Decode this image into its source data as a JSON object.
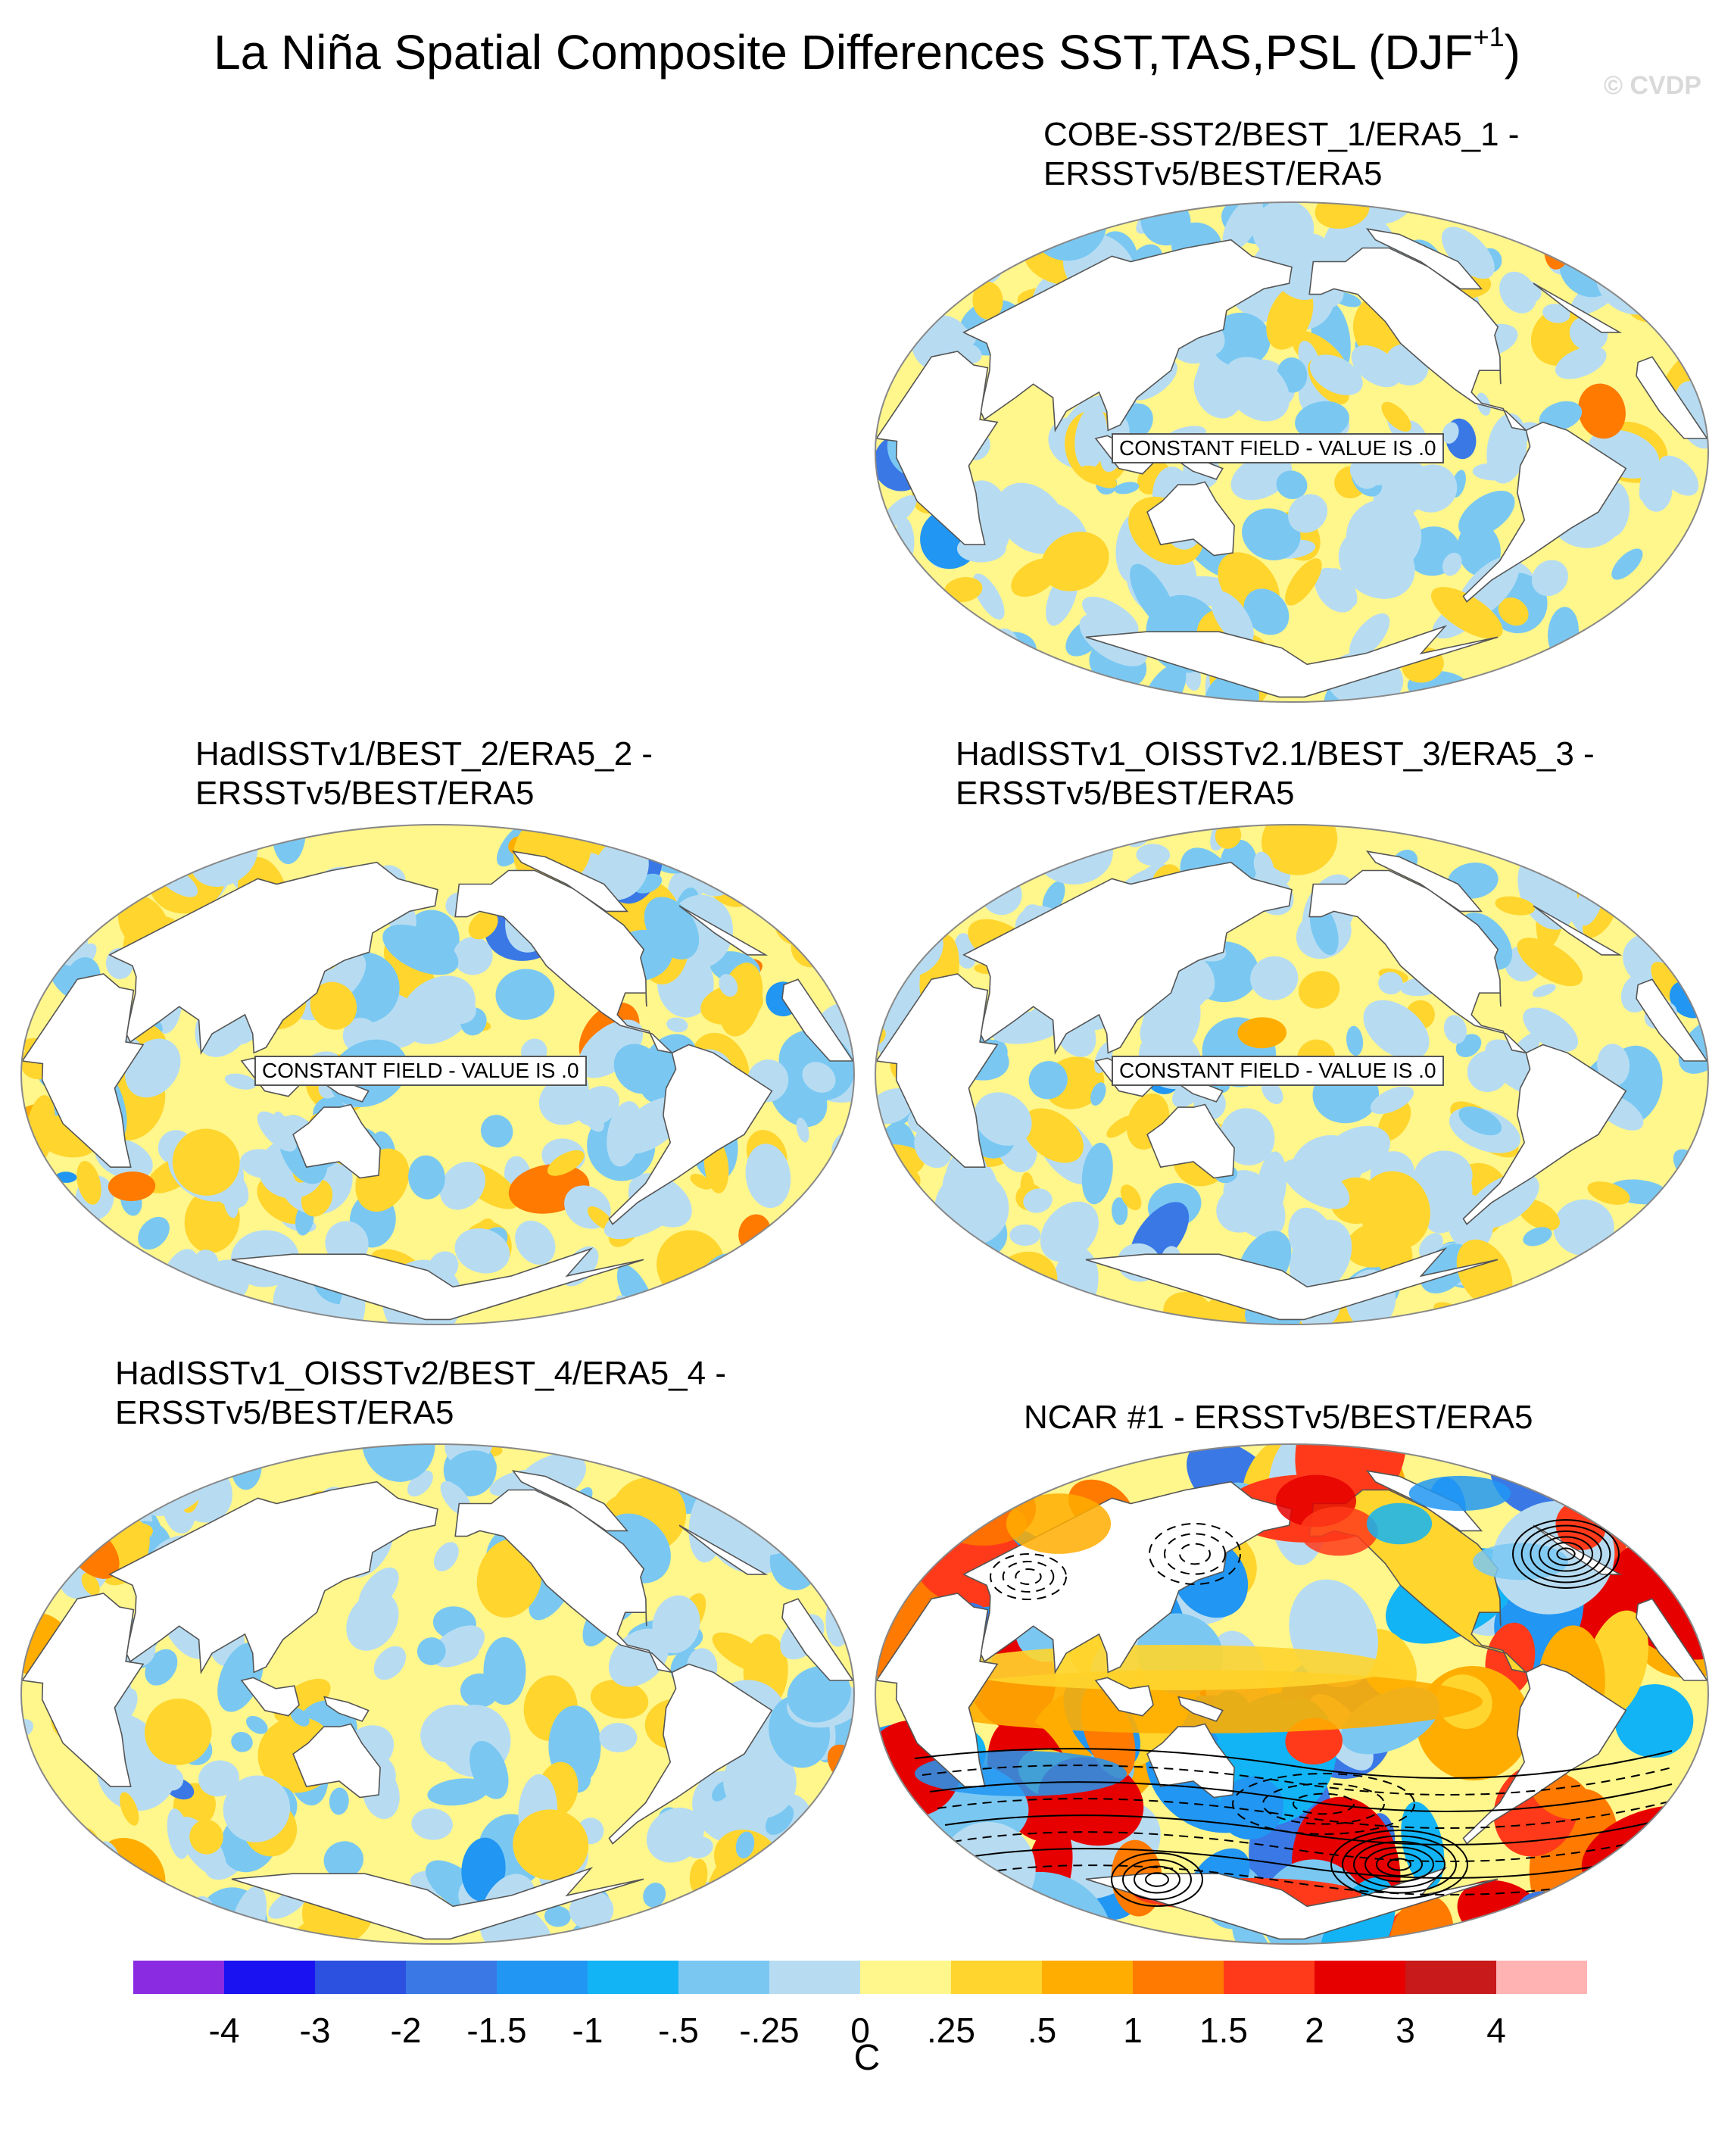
{
  "figure": {
    "title_main": "La Niña Spatial Composite Differences SST,TAS,PSL (DJF",
    "title_sup": "+1",
    "title_close": ")",
    "watermark": "© CVDP"
  },
  "panels": [
    {
      "title_line1": "COBE-SST2/BEST_1/ERA5_1 -",
      "title_line2": "ERSSTv5/BEST/ERA5",
      "note": "CONSTANT FIELD - VALUE IS .0"
    },
    {
      "title_line1": "HadISSTv1/BEST_2/ERA5_2 -",
      "title_line2": "ERSSTv5/BEST/ERA5",
      "note": "CONSTANT FIELD - VALUE IS .0"
    },
    {
      "title_line1": "HadISSTv1_OISSTv2.1/BEST_3/ERA5_3 -",
      "title_line2": "ERSSTv5/BEST/ERA5",
      "note": "CONSTANT FIELD - VALUE IS .0"
    },
    {
      "title_line1": "HadISSTv1_OISSTv2/BEST_4/ERA5_4 -",
      "title_line2": "ERSSTv5/BEST/ERA5",
      "note": ""
    },
    {
      "title_line1": "NCAR #1 - ERSSTv5/BEST/ERA5",
      "title_line2": "",
      "note": ""
    }
  ],
  "chart_data": {
    "type": "heatmap",
    "title": "La Niña Spatial Composite Differences SST,TAS,PSL (DJF+1)",
    "projection": "Robinson (Pacific-centered)",
    "colorbar": {
      "label": "C",
      "levels": [
        "-4",
        "-3",
        "-2",
        "-1.5",
        "-1",
        "-.5",
        "-.25",
        "0",
        ".25",
        ".5",
        "1",
        "1.5",
        "2",
        "3",
        "4"
      ],
      "colors": [
        "#8a2be2",
        "#1a12f0",
        "#2c50e0",
        "#3a78e6",
        "#2196f3",
        "#12b4f5",
        "#7ac8f2",
        "#b7dcf2",
        "#fff68c",
        "#ffd52e",
        "#ffad00",
        "#ff7a00",
        "#ff3a1a",
        "#e60000",
        "#c81a1a",
        "#ffb3b3"
      ]
    },
    "panels": [
      {
        "name": "COBE-SST2/BEST_1/ERA5_1 - ERSSTv5/BEST/ERA5",
        "field": "SST",
        "psl_contours": false,
        "constant_field_value": 0.0
      },
      {
        "name": "HadISSTv1/BEST_2/ERA5_2 - ERSSTv5/BEST/ERA5",
        "field": "SST",
        "psl_contours": false,
        "constant_field_value": 0.0
      },
      {
        "name": "HadISSTv1_OISSTv2.1/BEST_3/ERA5_3 - ERSSTv5/BEST/ERA5",
        "field": "SST",
        "psl_contours": false,
        "constant_field_value": 0.0
      },
      {
        "name": "HadISSTv1_OISSTv2/BEST_4/ERA5_4 - ERSSTv5/BEST/ERA5",
        "field": "SST,TAS",
        "psl_contours": false
      },
      {
        "name": "NCAR #1 - ERSSTv5/BEST/ERA5",
        "field": "SST,TAS,PSL",
        "psl_contours": true
      }
    ]
  }
}
